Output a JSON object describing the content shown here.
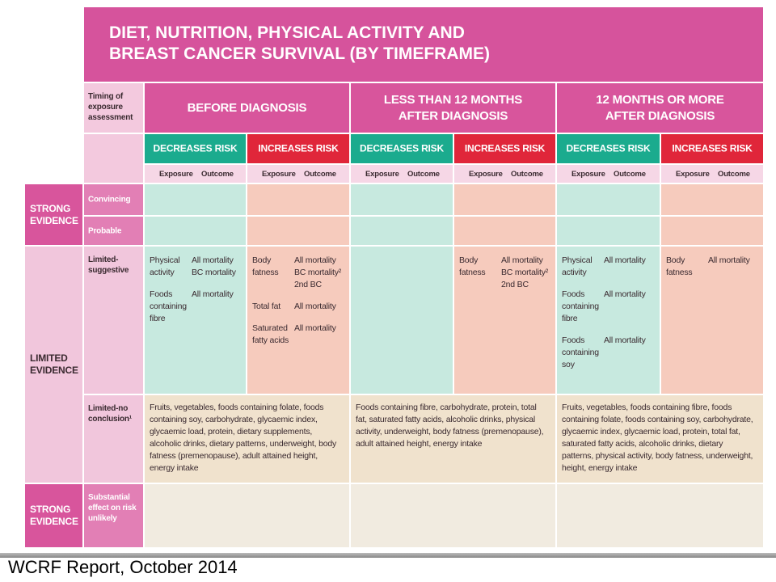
{
  "title": [
    "DIET, NUTRITION, PHYSICAL ACTIVITY AND",
    "BREAST CANCER SURVIVAL (BY TIMEFRAME)"
  ],
  "timing_label": "Timing of exposure assessment",
  "timeframes": [
    "BEFORE DIAGNOSIS",
    "LESS THAN 12 MONTHS AFTER DIAGNOSIS",
    "12 MONTHS OR MORE AFTER DIAGNOSIS"
  ],
  "risk_headers": [
    "DECREASES RISK",
    "INCREASES RISK",
    "DECREASES RISK",
    "INCREASES RISK",
    "DECREASES RISK",
    "INCREASES RISK"
  ],
  "subheaders": [
    [
      "Exposure",
      "Outcome"
    ],
    [
      "Exposure",
      "Outcome"
    ],
    [
      "Exposure",
      "Outcome"
    ],
    [
      "Exposure",
      "Outcome"
    ],
    [
      "Exposure",
      "Outcome"
    ],
    [
      "Exposure",
      "Outcome"
    ]
  ],
  "evidence_groups": [
    "STRONG EVIDENCE",
    "LIMITED EVIDENCE",
    "STRONG EVIDENCE"
  ],
  "row_labels": [
    "Convincing",
    "Probable",
    "Limited-suggestive",
    "Limited-no conclusion¹",
    "Substantial effect on risk unlikely"
  ],
  "limited_suggestive": [
    [
      {
        "exposure": "Physical activity",
        "outcome": [
          "All mortality",
          "BC mortality"
        ]
      },
      {
        "exposure": "Foods containing fibre",
        "outcome": [
          "All mortality"
        ]
      }
    ],
    [
      {
        "exposure": "Body fatness",
        "outcome": [
          "All mortality",
          "BC mortality²",
          "2nd BC"
        ]
      },
      {
        "exposure": "Total fat",
        "outcome": [
          "All mortality"
        ]
      },
      {
        "exposure": "Saturated fatty acids",
        "outcome": [
          "All mortality"
        ]
      }
    ],
    [],
    [
      {
        "exposure": "Body fatness",
        "outcome": [
          "All mortality",
          "BC mortality²",
          "2nd BC"
        ]
      }
    ],
    [
      {
        "exposure": "Physical activity",
        "outcome": [
          "All mortality"
        ]
      },
      {
        "exposure": "Foods containing fibre",
        "outcome": [
          "All mortality"
        ]
      },
      {
        "exposure": "Foods containing soy",
        "outcome": [
          "All mortality"
        ]
      }
    ],
    [
      {
        "exposure": "Body fatness",
        "outcome": [
          "All mortality"
        ]
      }
    ]
  ],
  "limited_no_conclusion": [
    "Fruits, vegetables, foods containing folate, foods containing soy, carbohydrate, glycaemic index, glycaemic load, protein, dietary supplements, alcoholic drinks, dietary patterns, underweight, body fatness (premenopause), adult attained height, energy intake",
    "Foods containing fibre, carbohydrate, protein, total fat, saturated fatty acids, alcoholic drinks, physical activity, underweight, body fatness (premenopause), adult attained height, energy intake",
    "Fruits, vegetables, foods containing fibre, foods containing folate, foods containing soy, carbohydrate, glycaemic index, glycaemic load, protein, total fat, saturated fatty acids, alcoholic drinks, dietary patterns, physical activity, body fatness, underweight, height, energy intake"
  ],
  "footer": "WCRF Report, October 2014"
}
